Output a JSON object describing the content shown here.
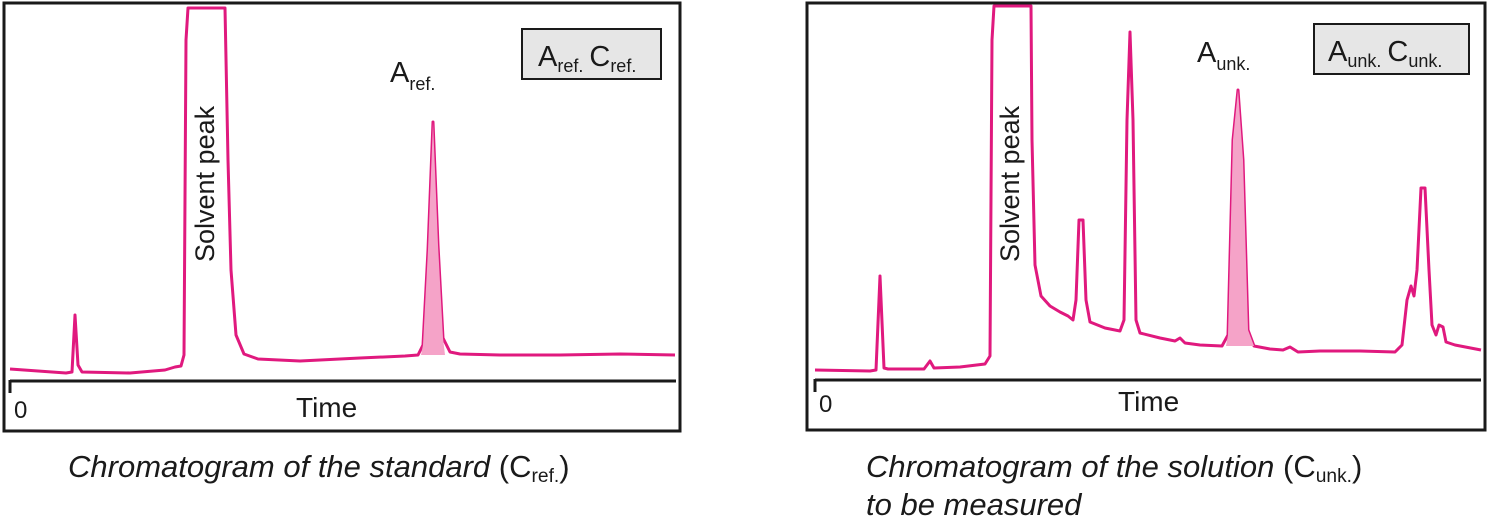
{
  "colors": {
    "trace": "#e0197e",
    "peak_fill": "#f5a3c8",
    "legend_bg": "#e6e6e6",
    "frame": "#1a1a1a"
  },
  "panels": [
    {
      "peak_label": {
        "main": "A",
        "sub": "ref."
      },
      "legend": {
        "a_main": "A",
        "a_sub": "ref.",
        "c_main": "C",
        "c_sub": "ref."
      },
      "solvent_label": "Solvent peak",
      "axis_zero": "0",
      "axis_label": "Time",
      "caption": {
        "line1": "Chromatogram of the standard",
        "conc_main": "C",
        "conc_sub": "ref.",
        "line2": ""
      }
    },
    {
      "peak_label": {
        "main": "A",
        "sub": "unk."
      },
      "legend": {
        "a_main": "A",
        "a_sub": "unk.",
        "c_main": "C",
        "c_sub": "unk."
      },
      "solvent_label": "Solvent peak",
      "axis_zero": "0",
      "axis_label": "Time",
      "caption": {
        "line1": "Chromatogram of the solution",
        "conc_main": "C",
        "conc_sub": "unk.",
        "line2": "to be measured"
      }
    }
  ]
}
